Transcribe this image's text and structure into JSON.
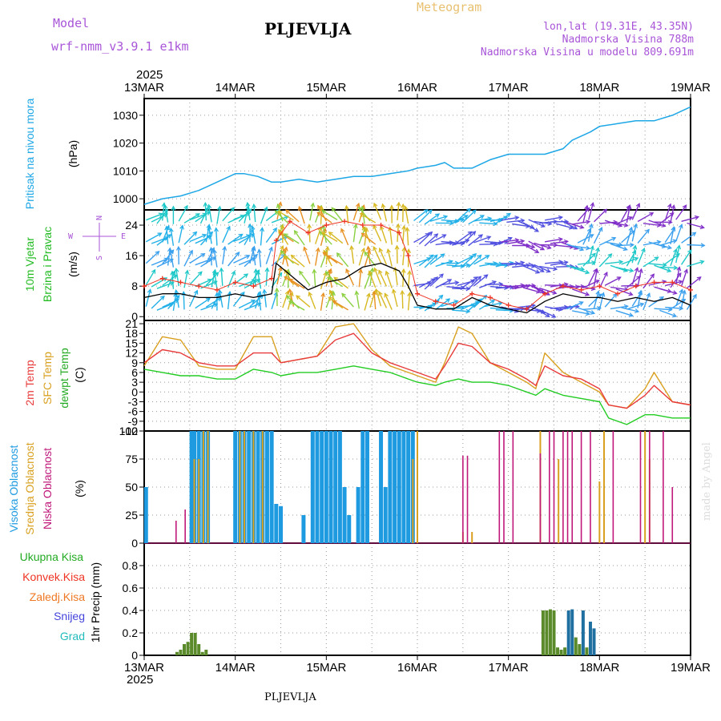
{
  "header": {
    "model_label": "Model",
    "model_name": "wrf-nmm_v3.9.1 e1km",
    "station": "PLJEVLJA",
    "meteogram": "Meteogram",
    "lonlat": "lon,lat (19.31E, 43.35N)",
    "elevation": "Nadmorska Visina 788m",
    "model_elevation": "Nadmorska Visina u modelu 809.691m",
    "footer_station": "PLJEVLJA",
    "watermark": "made by Angel"
  },
  "time_axis": {
    "year": "2025",
    "labels": [
      "13MAR",
      "14MAR",
      "15MAR",
      "16MAR",
      "17MAR",
      "18MAR",
      "19MAR"
    ]
  },
  "colors": {
    "pressure": "#1ea7e6",
    "wind_speed": "#000000",
    "wind_gust": "#ee3322",
    "temp2m": "#e83a3a",
    "sfc_temp": "#d9a020",
    "dewpoint": "#22cc22",
    "high_cloud": "#1e9be0",
    "mid_cloud": "#d9a020",
    "low_cloud": "#c0187a",
    "precip_total": "#33bb33",
    "precip_conv": "#ee3322",
    "precip_frozen": "#ee7722",
    "snow": "#4444dd",
    "hail": "#22bbbb"
  },
  "chart_data": [
    {
      "type": "line",
      "ylabel_name": "Pritisak na nivou mora",
      "ylabel_unit": "(hPa)",
      "ylim": [
        996,
        1036
      ],
      "yticks": [
        "1000",
        "1010",
        "1020",
        "1030"
      ],
      "ytick_values": [
        1000,
        1010,
        1020,
        1030
      ],
      "x_days": [
        0,
        0.1,
        0.2,
        0.4,
        0.6,
        0.8,
        1.0,
        1.1,
        1.25,
        1.4,
        1.5,
        1.7,
        1.9,
        2.1,
        2.3,
        2.5,
        2.7,
        2.9,
        3.0,
        3.2,
        3.3,
        3.4,
        3.6,
        3.8,
        4.0,
        4.2,
        4.4,
        4.6,
        4.7,
        4.9,
        5.0,
        5.2,
        5.4,
        5.5,
        5.6,
        5.8,
        6.0
      ],
      "values": [
        998,
        999,
        1000,
        1001,
        1003,
        1006,
        1009,
        1009,
        1008,
        1006,
        1006,
        1007,
        1006,
        1007,
        1008,
        1008,
        1009,
        1010,
        1011,
        1012,
        1013,
        1011,
        1011,
        1014,
        1016,
        1016,
        1016,
        1018,
        1021,
        1024,
        1026,
        1027,
        1028,
        1028,
        1028,
        1030,
        1033
      ]
    },
    {
      "type": "line",
      "ylabel_name_1": "10m Vjetar",
      "ylabel_name_2": "Brzina i Pravac",
      "ylabel_unit": "(m/s)",
      "compass": "N",
      "compass_w": "W",
      "compass_e": "E",
      "compass_s": "S",
      "ylim": [
        -1,
        28
      ],
      "yticks": [
        "0",
        "8",
        "16",
        "24"
      ],
      "ytick_values": [
        0,
        8,
        16,
        24
      ],
      "x_days": [
        0,
        0.2,
        0.4,
        0.6,
        0.8,
        1.0,
        1.2,
        1.4,
        1.45,
        1.6,
        1.8,
        2.0,
        2.2,
        2.4,
        2.6,
        2.8,
        2.9,
        3.0,
        3.2,
        3.4,
        3.6,
        3.8,
        4.0,
        4.2,
        4.4,
        4.6,
        4.8,
        5.0,
        5.2,
        5.4,
        5.6,
        5.8,
        6.0
      ],
      "speed": [
        5,
        6,
        6,
        5,
        5,
        6,
        5,
        6,
        14,
        11,
        7,
        9,
        10,
        13,
        14,
        12,
        8,
        3,
        2,
        2,
        5,
        3,
        2,
        1,
        4,
        6,
        5,
        5,
        4,
        5,
        4,
        5,
        3
      ],
      "gust": [
        8,
        10,
        9,
        8,
        7,
        9,
        8,
        10,
        20,
        25,
        22,
        24,
        25,
        24,
        24,
        22,
        16,
        6,
        4,
        3,
        6,
        5,
        3,
        2,
        6,
        8,
        7,
        8,
        6,
        8,
        9,
        9,
        7
      ]
    },
    {
      "type": "line",
      "ylabel_name_1": "2m Temp",
      "ylabel_name_2": "SFC Temp",
      "ylabel_name_3": "dewpt Temp",
      "ylabel_unit": "(C)",
      "ylim": [
        -12,
        22
      ],
      "yticks": [
        "21",
        "18",
        "15",
        "12",
        "9",
        "6",
        "3",
        "0",
        "-3",
        "-6",
        "-9",
        "-12"
      ],
      "ytick_values": [
        21,
        18,
        15,
        12,
        9,
        6,
        3,
        0,
        -3,
        -6,
        -9,
        -12
      ],
      "x_days": [
        0,
        0.2,
        0.4,
        0.6,
        0.8,
        1.0,
        1.2,
        1.4,
        1.5,
        1.7,
        1.9,
        2.1,
        2.3,
        2.5,
        2.7,
        2.9,
        3.0,
        3.2,
        3.3,
        3.45,
        3.6,
        3.8,
        4.0,
        4.2,
        4.3,
        4.4,
        4.6,
        4.8,
        5.0,
        5.1,
        5.3,
        5.5,
        5.6,
        5.8,
        6.0
      ],
      "temp2m": [
        9,
        13,
        12,
        9,
        8,
        8,
        12,
        12,
        9,
        10,
        11,
        16,
        18,
        12,
        9,
        7,
        6,
        4,
        8,
        15,
        14,
        9,
        7,
        4,
        2,
        8,
        5,
        4,
        1,
        -4,
        -5,
        -1,
        2,
        -3,
        -4
      ],
      "sfc": [
        8,
        17,
        16,
        8,
        7,
        7,
        17,
        17,
        9,
        10,
        11,
        20,
        21,
        13,
        8,
        6,
        5,
        3,
        9,
        20,
        18,
        9,
        6,
        3,
        1,
        12,
        6,
        3,
        0,
        -4,
        -5,
        1,
        6,
        -3,
        -4
      ],
      "dew": [
        7,
        6,
        5,
        5,
        4,
        4,
        7,
        6,
        5,
        6,
        6,
        7,
        8,
        7,
        6,
        4,
        3,
        2,
        3,
        4,
        3,
        3,
        2,
        0,
        -1,
        1,
        -1,
        -2,
        -3,
        -8,
        -10,
        -7,
        -7,
        -8,
        -8
      ]
    },
    {
      "type": "bar",
      "ylabel_name_1": "Visoka Oblacnost",
      "ylabel_name_2": "Srednja Oblacnost",
      "ylabel_name_3": "Niska Oblacnost",
      "ylabel_unit": "(%)",
      "ylim": [
        0,
        100
      ],
      "yticks": [
        "0",
        "25",
        "50",
        "75",
        "100"
      ],
      "ytick_values": [
        0,
        25,
        50,
        75,
        100
      ],
      "high_x": [
        0.02,
        0.52,
        0.55,
        0.6,
        0.65,
        0.7,
        1.0,
        1.05,
        1.1,
        1.15,
        1.2,
        1.25,
        1.3,
        1.35,
        1.4,
        1.45,
        1.5,
        1.75,
        1.85,
        1.9,
        1.95,
        2.0,
        2.05,
        2.1,
        2.15,
        2.2,
        2.25,
        2.35,
        2.4,
        2.45,
        2.6,
        2.65,
        2.7,
        2.75,
        2.8,
        2.85,
        2.9,
        2.95
      ],
      "high_v": [
        50,
        100,
        100,
        100,
        100,
        100,
        100,
        100,
        100,
        100,
        100,
        100,
        100,
        100,
        100,
        35,
        33,
        25,
        100,
        100,
        100,
        100,
        100,
        100,
        100,
        50,
        25,
        50,
        100,
        100,
        100,
        50,
        100,
        100,
        100,
        100,
        100,
        100
      ],
      "mid_x": [
        0.55,
        0.6,
        0.65,
        0.7,
        1.05,
        1.1,
        1.2,
        1.3,
        2.95,
        3.0,
        3.5,
        3.6,
        4.35,
        4.55,
        5.0,
        5.05,
        5.5,
        5.55
      ],
      "mid_v": [
        75,
        75,
        100,
        100,
        100,
        100,
        100,
        100,
        75,
        100,
        10,
        10,
        100,
        75,
        55,
        100,
        100,
        75
      ],
      "low_x": [
        0.35,
        0.45,
        3.5,
        3.55,
        3.9,
        3.95,
        4.05,
        4.35,
        4.45,
        4.5,
        4.6,
        4.65,
        4.7,
        4.8,
        4.9,
        5.15,
        5.45,
        5.55,
        5.7,
        5.8
      ],
      "low_v": [
        20,
        30,
        78,
        78,
        100,
        100,
        100,
        80,
        100,
        100,
        100,
        100,
        100,
        100,
        100,
        100,
        100,
        100,
        100,
        50
      ]
    },
    {
      "type": "bar",
      "ylabel_name_1": "Ukupna Kisa",
      "ylabel_name_2": "Konvek.Kisa",
      "ylabel_name_3": "Zaledj.Kisa",
      "ylabel_name_4": "Snijeg",
      "ylabel_name_5": "Grad",
      "ylabel_unit": "1hr Precip (mm)",
      "ylim": [
        0,
        1.0
      ],
      "yticks": [
        "0",
        "0.2",
        "0.4",
        "0.6",
        "0.8"
      ],
      "ytick_values": [
        0,
        0.2,
        0.4,
        0.6,
        0.8
      ],
      "x_days": [
        0.36,
        0.4,
        0.44,
        0.48,
        0.52,
        0.56,
        0.6,
        0.64,
        0.68,
        4.38,
        4.42,
        4.46,
        4.5,
        4.54,
        4.58,
        4.62,
        4.66,
        4.7,
        4.74,
        4.78,
        4.82,
        4.86,
        4.9,
        4.94
      ],
      "values": [
        0.03,
        0.05,
        0.1,
        0.12,
        0.2,
        0.2,
        0.1,
        0.03,
        0.05,
        0.4,
        0.4,
        0.41,
        0.4,
        0.07,
        0.05,
        0.07,
        0.4,
        0.41,
        0.16,
        0.1,
        0.4,
        0.07,
        0.3,
        0.24
      ],
      "snow_flags": [
        0,
        0,
        0,
        0,
        0,
        0,
        0,
        0,
        0,
        0,
        0,
        0,
        0,
        0,
        0,
        0,
        1,
        1,
        0,
        0,
        1,
        0,
        1,
        1
      ]
    }
  ]
}
